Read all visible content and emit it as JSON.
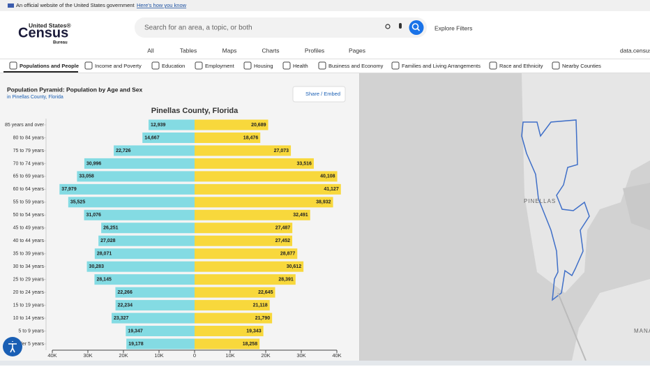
{
  "banner": {
    "text": "An official website of the United States government",
    "link": "Here's how you know"
  },
  "logo": {
    "line1": "United States®",
    "line2": "Census",
    "line3": "Bureau"
  },
  "search": {
    "placeholder": "Search for an area, a topic, or both"
  },
  "explore": "Explore Filters",
  "nav": [
    "All",
    "Tables",
    "Maps",
    "Charts",
    "Profiles",
    "Pages"
  ],
  "site": "data.census",
  "tabs": [
    "Populations and People",
    "Income and Poverty",
    "Education",
    "Employment",
    "Housing",
    "Health",
    "Business and Economy",
    "Families and Living Arrangements",
    "Race and Ethnicity",
    "Nearby Counties"
  ],
  "panel": {
    "title": "Population Pyramid: Population by Age and Sex",
    "subtitle": "in Pinellas County, Florida",
    "share": "Share / Embed"
  },
  "chart_data": {
    "type": "pyramid",
    "title": "Pinellas County, Florida",
    "categories": [
      "85 years and over",
      "80 to 84 years",
      "75 to 79 years",
      "70 to 74 years",
      "65 to 69 years",
      "60 to 64 years",
      "55 to 59 years",
      "50 to 54 years",
      "45 to 49 years",
      "40 to 44 years",
      "35 to 39 years",
      "30 to 34 years",
      "25 to 29 years",
      "20 to 24 years",
      "15 to 19 years",
      "10 to 14 years",
      "5 to 9 years",
      "Under 5 years"
    ],
    "series": [
      {
        "color": "#84dbe3",
        "values": [
          12939,
          14667,
          22726,
          30996,
          33058,
          37979,
          35525,
          31076,
          26251,
          27028,
          28071,
          30283,
          28145,
          22266,
          22234,
          23327,
          19347,
          19178
        ],
        "value_labels": [
          "12,939",
          "14,667",
          "22,726",
          "30,996",
          "33,058",
          "37,979",
          "35,525",
          "31,076",
          "26,251",
          "27,028",
          "28,071",
          "30,283",
          "28,145",
          "22,266",
          "22,234",
          "23,327",
          "19,347",
          "19,178"
        ]
      },
      {
        "color": "#f8d83c",
        "values": [
          20689,
          18476,
          27073,
          33516,
          40108,
          41127,
          38932,
          32491,
          27487,
          27452,
          28877,
          30612,
          28391,
          22645,
          21118,
          21790,
          19343,
          18258
        ],
        "value_labels": [
          "20,689",
          "18,476",
          "27,073",
          "33,516",
          "40,108",
          "41,127",
          "38,932",
          "32,491",
          "27,487",
          "27,452",
          "28,877",
          "30,612",
          "28,391",
          "22,645",
          "21,118",
          "21,790",
          "19,343",
          "18,258"
        ]
      }
    ],
    "xlim": [
      -40000,
      40000
    ],
    "xticks": [
      {
        "value": -40000,
        "label": "40K"
      },
      {
        "value": -30000,
        "label": "30K"
      },
      {
        "value": -20000,
        "label": "20K"
      },
      {
        "value": -10000,
        "label": "10K"
      },
      0,
      {
        "value": 10000,
        "label": "10K"
      },
      {
        "value": 20000,
        "label": "20K"
      },
      {
        "value": 30000,
        "label": "30K"
      },
      {
        "value": 40000,
        "label": "40K"
      }
    ]
  },
  "map": {
    "labels": [
      "PINELLAS",
      "MANA"
    ]
  }
}
